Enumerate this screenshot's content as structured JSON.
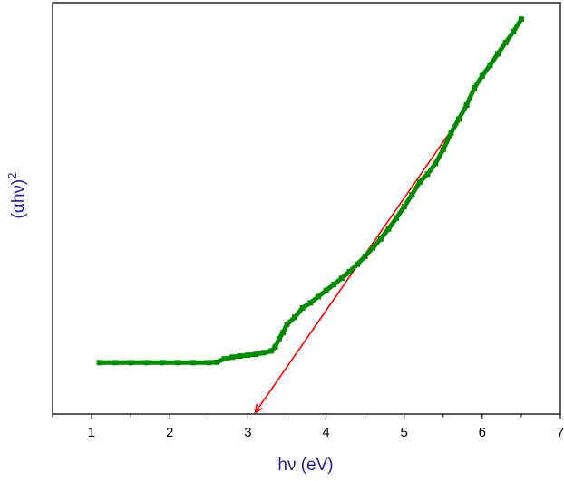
{
  "chart_data": {
    "type": "scatter",
    "title": "",
    "xlabel": "hν (eV)",
    "ylabel": "(αhν)",
    "ylabel_superscript": "2",
    "label_color": "#1f1f9f",
    "xlim": [
      0.5,
      7.0
    ],
    "ylim": [
      0,
      100
    ],
    "x_ticks": [
      1,
      2,
      3,
      4,
      5,
      6,
      7
    ],
    "x_tick_labels": [
      "1",
      "2",
      "3",
      "4",
      "5",
      "6",
      "7"
    ],
    "y_tick_labels_shown": false,
    "grid": false,
    "legend": "none",
    "series": [
      {
        "color": "#008a00",
        "marker": "square",
        "points": [
          [
            1.1,
            12.5
          ],
          [
            1.3,
            12.5
          ],
          [
            1.5,
            12.5
          ],
          [
            1.7,
            12.5
          ],
          [
            1.9,
            12.5
          ],
          [
            2.1,
            12.5
          ],
          [
            2.3,
            12.5
          ],
          [
            2.5,
            12.5
          ],
          [
            2.6,
            12.6
          ],
          [
            2.7,
            13.4
          ],
          [
            2.8,
            13.8
          ],
          [
            2.9,
            14.1
          ],
          [
            3.0,
            14.3
          ],
          [
            3.1,
            14.5
          ],
          [
            3.2,
            14.9
          ],
          [
            3.3,
            15.3
          ],
          [
            3.35,
            16.3
          ],
          [
            3.4,
            18.3
          ],
          [
            3.45,
            19.8
          ],
          [
            3.5,
            21.8
          ],
          [
            3.6,
            23.5
          ],
          [
            3.7,
            25.8
          ],
          [
            3.8,
            27.0
          ],
          [
            3.9,
            28.5
          ],
          [
            4.0,
            30.0
          ],
          [
            4.1,
            31.5
          ],
          [
            4.2,
            33.0
          ],
          [
            4.3,
            34.6
          ],
          [
            4.4,
            36.4
          ],
          [
            4.5,
            38.3
          ],
          [
            4.6,
            40.4
          ],
          [
            4.7,
            42.6
          ],
          [
            4.8,
            45.0
          ],
          [
            4.9,
            47.6
          ],
          [
            5.0,
            50.4
          ],
          [
            5.1,
            53.3
          ],
          [
            5.2,
            56.4
          ],
          [
            5.3,
            58.3
          ],
          [
            5.4,
            60.9
          ],
          [
            5.5,
            64.3
          ],
          [
            5.6,
            68.3
          ],
          [
            5.7,
            71.7
          ],
          [
            5.8,
            75.1
          ],
          [
            5.9,
            79.3
          ],
          [
            6.0,
            82.2
          ],
          [
            6.1,
            84.8
          ],
          [
            6.2,
            87.6
          ],
          [
            6.3,
            90.3
          ],
          [
            6.4,
            93.0
          ],
          [
            6.5,
            96.0
          ]
        ]
      }
    ],
    "fit_line": {
      "color": "#ff0000",
      "from": [
        5.75,
        73.0
      ],
      "to": [
        3.1,
        0.5
      ],
      "arrow": true
    }
  }
}
